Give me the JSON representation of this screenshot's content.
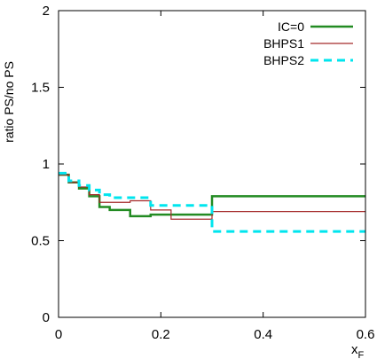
{
  "chart_data": {
    "type": "line",
    "step": true,
    "title": "",
    "xlabel": "x",
    "xlabel_sub": "F",
    "ylabel": "ratio PS/no PS",
    "xlim": [
      0,
      0.6
    ],
    "ylim": [
      0,
      2
    ],
    "xticks": [
      "0",
      "0.2",
      "0.4",
      "0.6"
    ],
    "xtick_values": [
      0,
      0.2,
      0.4,
      0.6
    ],
    "yticks": [
      "0",
      "0.5",
      "1",
      "1.5",
      "2"
    ],
    "ytick_values": [
      0,
      0.5,
      1,
      1.5,
      2
    ],
    "grid": false,
    "legend_position": "top-right",
    "series": [
      {
        "name": "IC=0",
        "color": "#228b22",
        "style": "solid-thick",
        "bin_edges": [
          0,
          0.02,
          0.04,
          0.06,
          0.08,
          0.1,
          0.14,
          0.18,
          0.22,
          0.3,
          0.6
        ],
        "values": [
          0.93,
          0.88,
          0.84,
          0.79,
          0.72,
          0.7,
          0.66,
          0.67,
          0.67,
          0.79
        ]
      },
      {
        "name": "BHPS1",
        "color": "#a52a2a",
        "style": "solid-thin",
        "bin_edges": [
          0,
          0.02,
          0.04,
          0.06,
          0.08,
          0.1,
          0.14,
          0.18,
          0.22,
          0.3,
          0.6
        ],
        "values": [
          0.93,
          0.88,
          0.85,
          0.8,
          0.75,
          0.75,
          0.76,
          0.7,
          0.64,
          0.69
        ]
      },
      {
        "name": "BHPS2",
        "color": "#00e5ee",
        "style": "dashed-thick",
        "bin_edges": [
          0,
          0.02,
          0.04,
          0.06,
          0.08,
          0.1,
          0.14,
          0.18,
          0.22,
          0.3,
          0.6
        ],
        "values": [
          0.94,
          0.89,
          0.86,
          0.83,
          0.8,
          0.78,
          0.78,
          0.73,
          0.73,
          0.56
        ]
      }
    ]
  }
}
